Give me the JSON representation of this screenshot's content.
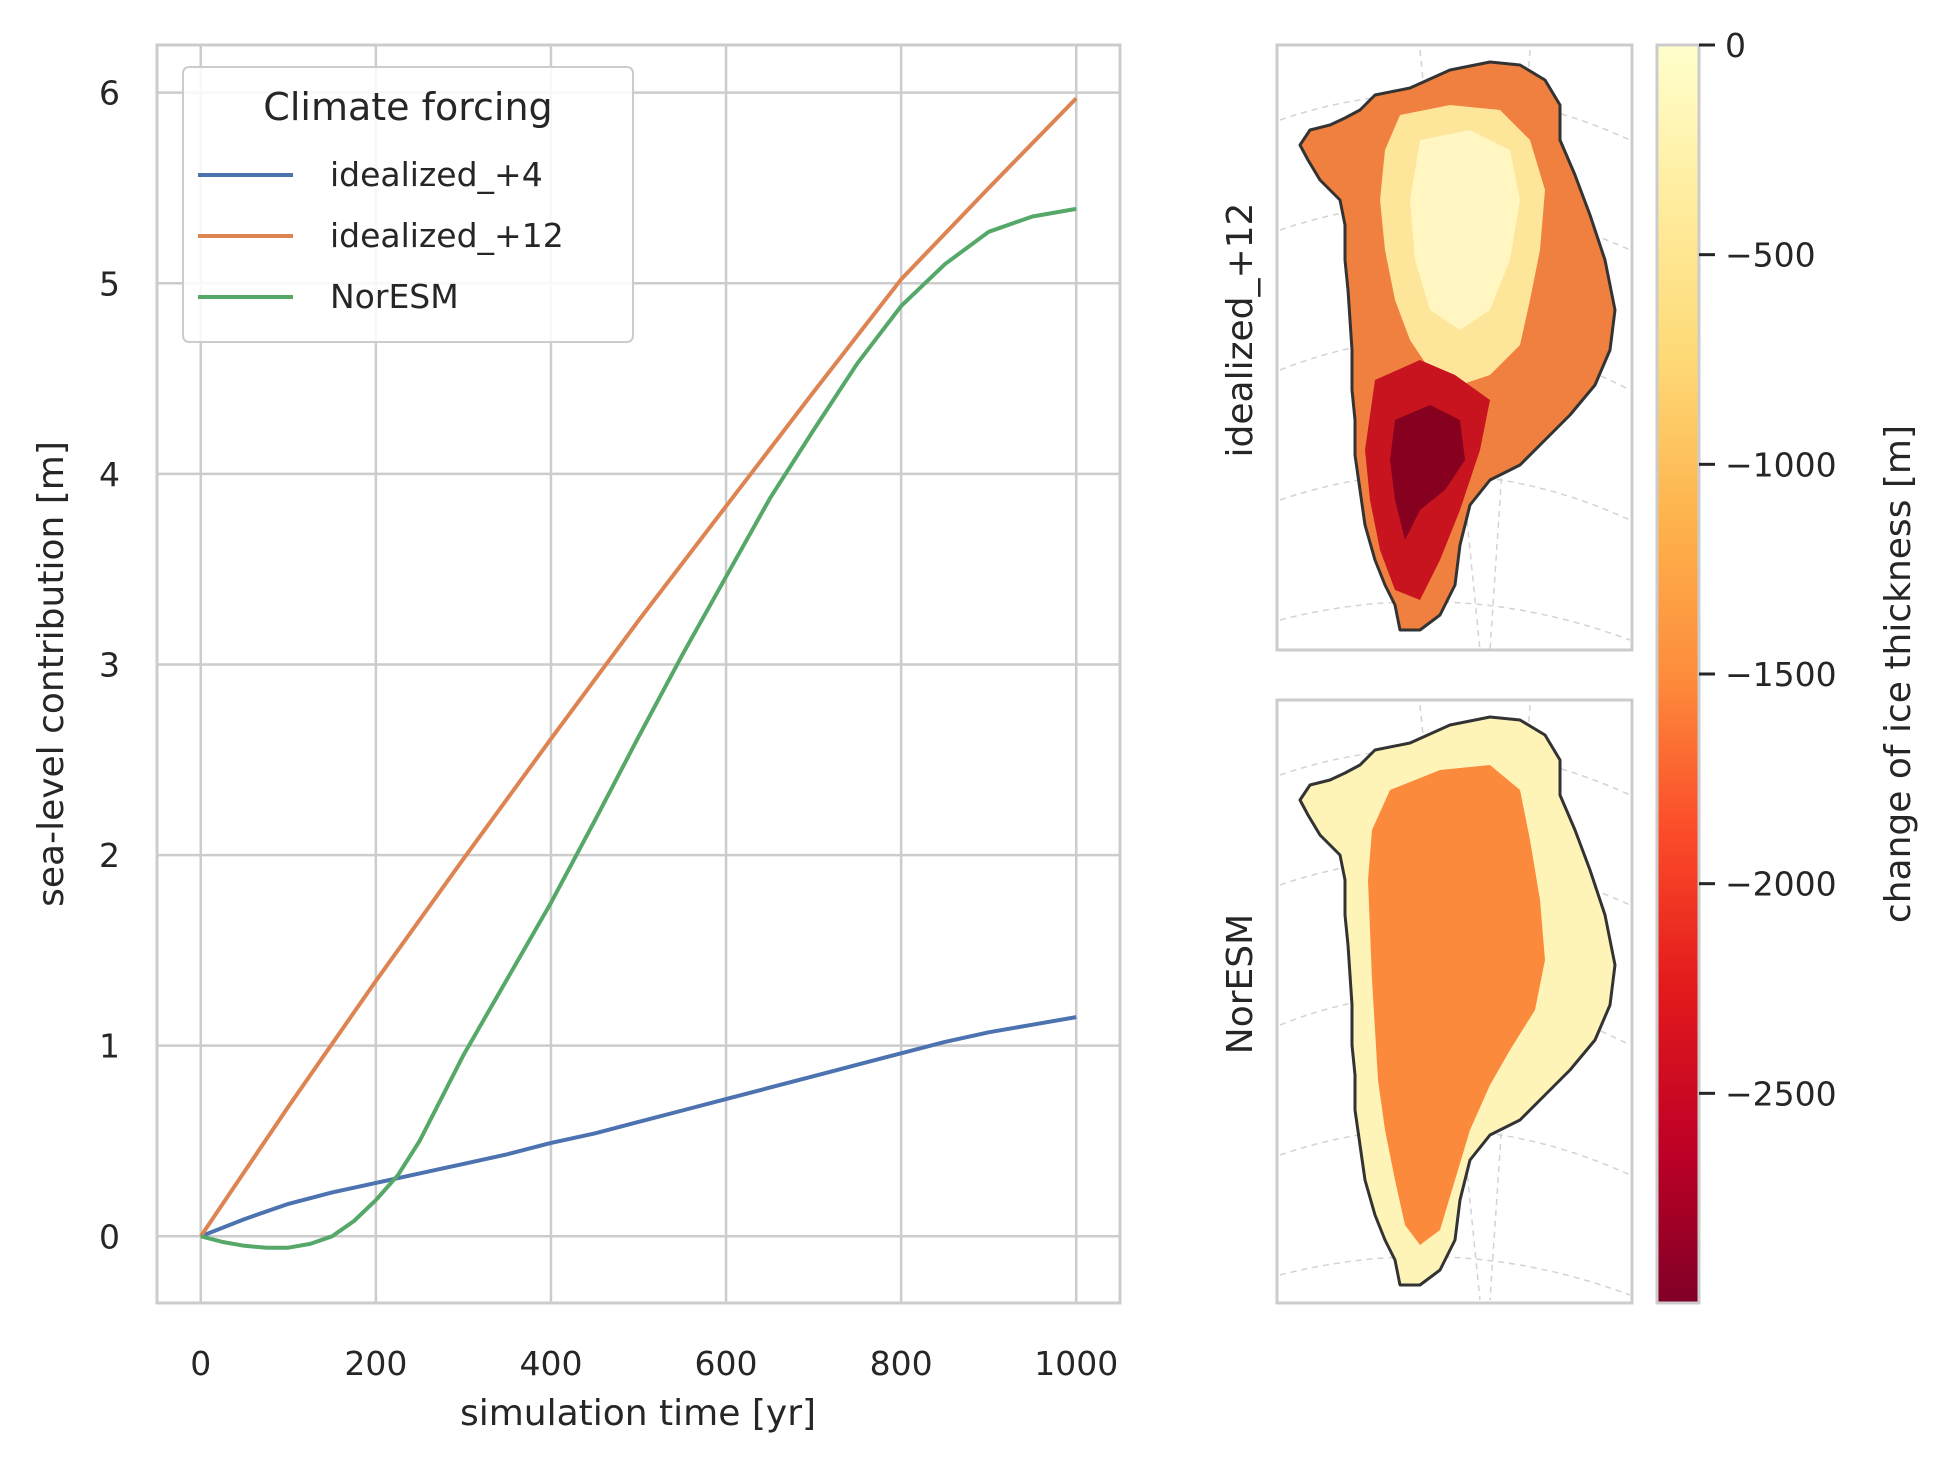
{
  "chart_data": [
    {
      "type": "line",
      "xlabel": "simulation time [yr]",
      "ylabel": "sea-level contribution [m]",
      "xlim": [
        -50,
        1050
      ],
      "ylim": [
        -0.35,
        6.25
      ],
      "xticks": [
        0,
        200,
        400,
        600,
        800,
        1000
      ],
      "yticks": [
        0,
        1,
        2,
        3,
        4,
        5,
        6
      ],
      "xtick_labels": [
        "0",
        "200",
        "400",
        "600",
        "800",
        "1000"
      ],
      "ytick_labels": [
        "0",
        "1",
        "2",
        "3",
        "4",
        "5",
        "6"
      ],
      "grid": true,
      "legend": {
        "title": "Climate forcing",
        "placement": "top-left"
      },
      "series": [
        {
          "name": "idealized_+4",
          "color": "#4c72b0",
          "x": [
            0,
            50,
            100,
            150,
            200,
            250,
            300,
            350,
            400,
            450,
            500,
            550,
            600,
            650,
            700,
            750,
            800,
            850,
            900,
            950,
            1000
          ],
          "y": [
            0,
            0.09,
            0.17,
            0.23,
            0.28,
            0.33,
            0.38,
            0.43,
            0.49,
            0.54,
            0.6,
            0.66,
            0.72,
            0.78,
            0.84,
            0.9,
            0.96,
            1.02,
            1.07,
            1.11,
            1.15
          ]
        },
        {
          "name": "idealized_+12",
          "color": "#dd8452",
          "x": [
            0,
            100,
            200,
            300,
            400,
            500,
            600,
            700,
            800,
            900,
            1000
          ],
          "y": [
            0,
            0.68,
            1.34,
            1.98,
            2.61,
            3.23,
            3.83,
            4.43,
            5.02,
            5.5,
            5.97
          ]
        },
        {
          "name": "NorESM",
          "color": "#55a868",
          "x": [
            0,
            25,
            50,
            75,
            100,
            125,
            150,
            175,
            200,
            225,
            250,
            300,
            350,
            400,
            450,
            500,
            550,
            600,
            650,
            700,
            750,
            800,
            850,
            900,
            950,
            1000
          ],
          "y": [
            0,
            -0.03,
            -0.05,
            -0.06,
            -0.06,
            -0.04,
            0.0,
            0.08,
            0.19,
            0.32,
            0.5,
            0.95,
            1.35,
            1.75,
            2.18,
            2.62,
            3.05,
            3.46,
            3.87,
            4.23,
            4.58,
            4.88,
            5.1,
            5.27,
            5.35,
            5.39
          ]
        }
      ]
    },
    {
      "type": "heatmap",
      "title": "idealized_+12"
    },
    {
      "type": "heatmap",
      "title": "NorESM"
    },
    {
      "type": "colorbar",
      "label": "change of ice thickness [m]",
      "range": [
        -3000,
        0
      ],
      "ticks": [
        0,
        -500,
        -1000,
        -1500,
        -2000,
        -2500
      ],
      "tick_labels": [
        "0",
        "−500",
        "−1000",
        "−1500",
        "−2000",
        "−2500"
      ],
      "colormap": "YlOrRd_r",
      "colors": [
        "#ffffcc",
        "#ffeda0",
        "#fed976",
        "#feb24c",
        "#fd8d3c",
        "#fc4e2a",
        "#e31a1c",
        "#bd0026",
        "#800026"
      ]
    }
  ]
}
